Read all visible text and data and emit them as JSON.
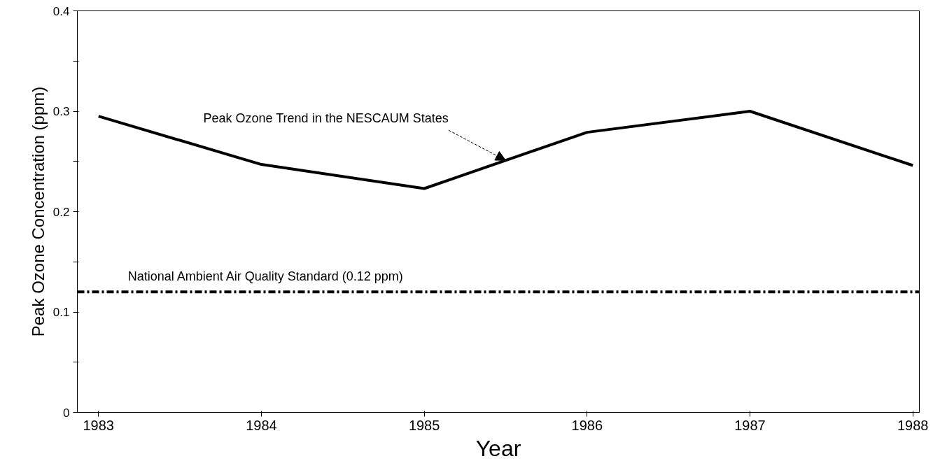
{
  "chart_data": {
    "type": "line",
    "xlabel": "Year",
    "ylabel": "Peak Ozone Concentration (ppm)",
    "x": [
      1983,
      1984,
      1985,
      1986,
      1987,
      1988
    ],
    "series": [
      {
        "color": "#000000",
        "values": [
          0.295,
          0.247,
          0.223,
          0.279,
          0.3,
          0.246
        ]
      }
    ],
    "xlim": [
      1982.87,
      1988.04
    ],
    "xticks": [
      1983,
      1984,
      1985,
      1986,
      1987,
      1988
    ],
    "ylim": [
      0,
      0.4
    ],
    "yticks": [
      0,
      {
        "value": 0.05,
        "label": null
      },
      0.1,
      {
        "value": 0.15,
        "label": null
      },
      0.2,
      {
        "value": 0.25,
        "label": null
      },
      0.3,
      {
        "value": 0.35,
        "label": null
      },
      0.4
    ],
    "ref_lines": [
      {
        "axis": "y",
        "value": 0.12,
        "label": "National Ambient Air Quality Standard (0.12 ppm)",
        "color": "#000000",
        "line_style": "dashdot"
      }
    ],
    "annotations": [
      {
        "text": "Peak Ozone Trend in the NESCAUM States",
        "x": 1985.5,
        "y": 0.251
      }
    ],
    "grid": false,
    "marker": "none",
    "line_style": "solid"
  }
}
